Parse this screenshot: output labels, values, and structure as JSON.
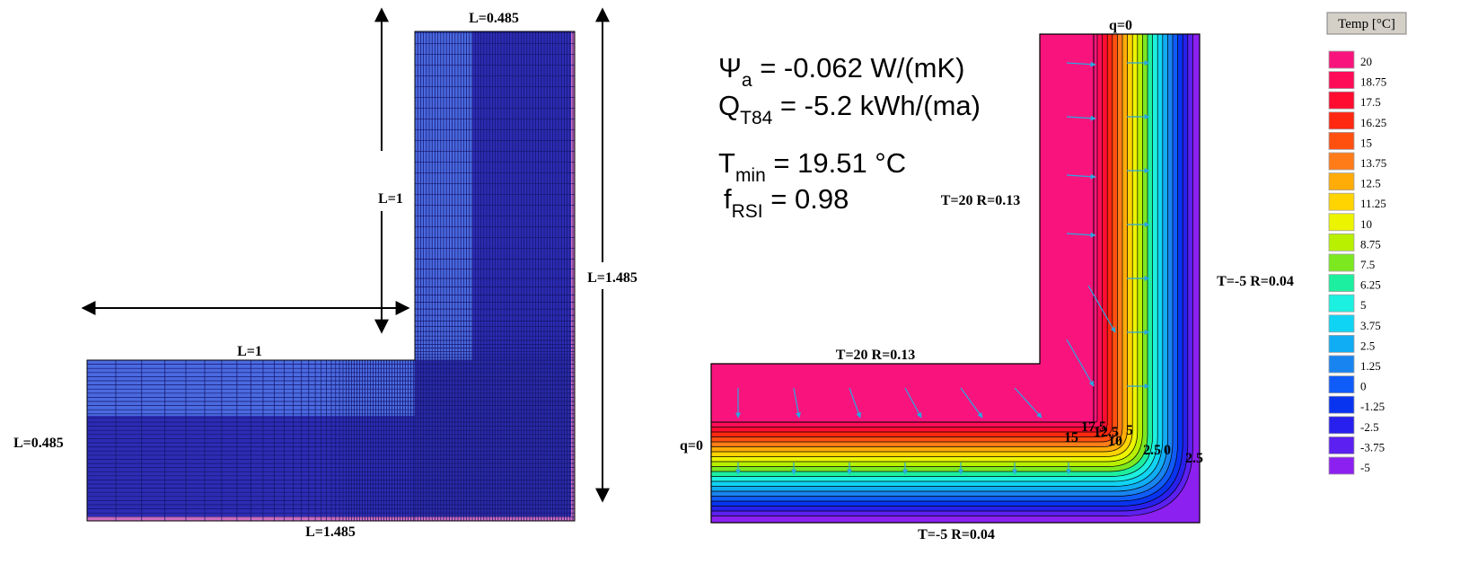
{
  "mesh": {
    "labels": [
      "L=0.485",
      "L=1",
      "L=1.485",
      "L=1",
      "L=0.485",
      "L=1.485"
    ]
  },
  "results": {
    "formulas": [
      {
        "symbol": "Ψ",
        "sub": "a",
        "text": " = -0.062 W/(mK)"
      },
      {
        "symbol": "Q",
        "sub": "T84",
        "text": " = -5.2 kWh/(ma)"
      },
      {
        "symbol": "T",
        "sub": "min",
        "text": " = 19.51 °C"
      },
      {
        "symbol": "f",
        "sub": "RSI",
        "text": " = 0.98"
      }
    ],
    "boundary_labels": [
      "q=0",
      "T=20 R=0.13",
      "T=-5 R=0.04",
      "T=20 R=0.13",
      "q=0",
      "T=-5 R=0.04"
    ],
    "contour_labels": [
      "17.5",
      "15",
      "12.5",
      "10",
      "5",
      "2.5",
      "0",
      "2.5"
    ]
  },
  "legend": {
    "title": "Temp [°C]",
    "items": [
      {
        "label": "20",
        "color": "#f8147c"
      },
      {
        "label": "18.75",
        "color": "#ff0c58"
      },
      {
        "label": "17.5",
        "color": "#ff0c30"
      },
      {
        "label": "16.25",
        "color": "#ff2810"
      },
      {
        "label": "15",
        "color": "#ff5010"
      },
      {
        "label": "13.75",
        "color": "#ff7c18"
      },
      {
        "label": "12.5",
        "color": "#ffac08"
      },
      {
        "label": "11.25",
        "color": "#ffd400"
      },
      {
        "label": "10",
        "color": "#ecf400"
      },
      {
        "label": "8.75",
        "color": "#b8f000"
      },
      {
        "label": "7.5",
        "color": "#7ce820"
      },
      {
        "label": "6.25",
        "color": "#1cf0a0"
      },
      {
        "label": "5",
        "color": "#1cf0e0"
      },
      {
        "label": "3.75",
        "color": "#10d4f4"
      },
      {
        "label": "2.5",
        "color": "#10acf4"
      },
      {
        "label": "1.25",
        "color": "#1884f0"
      },
      {
        "label": "0",
        "color": "#105cf8"
      },
      {
        "label": "-1.25",
        "color": "#0834f0"
      },
      {
        "label": "-2.5",
        "color": "#2820ec"
      },
      {
        "label": "-3.75",
        "color": "#5c20f0"
      },
      {
        "label": "-5",
        "color": "#8c20f0"
      }
    ]
  }
}
